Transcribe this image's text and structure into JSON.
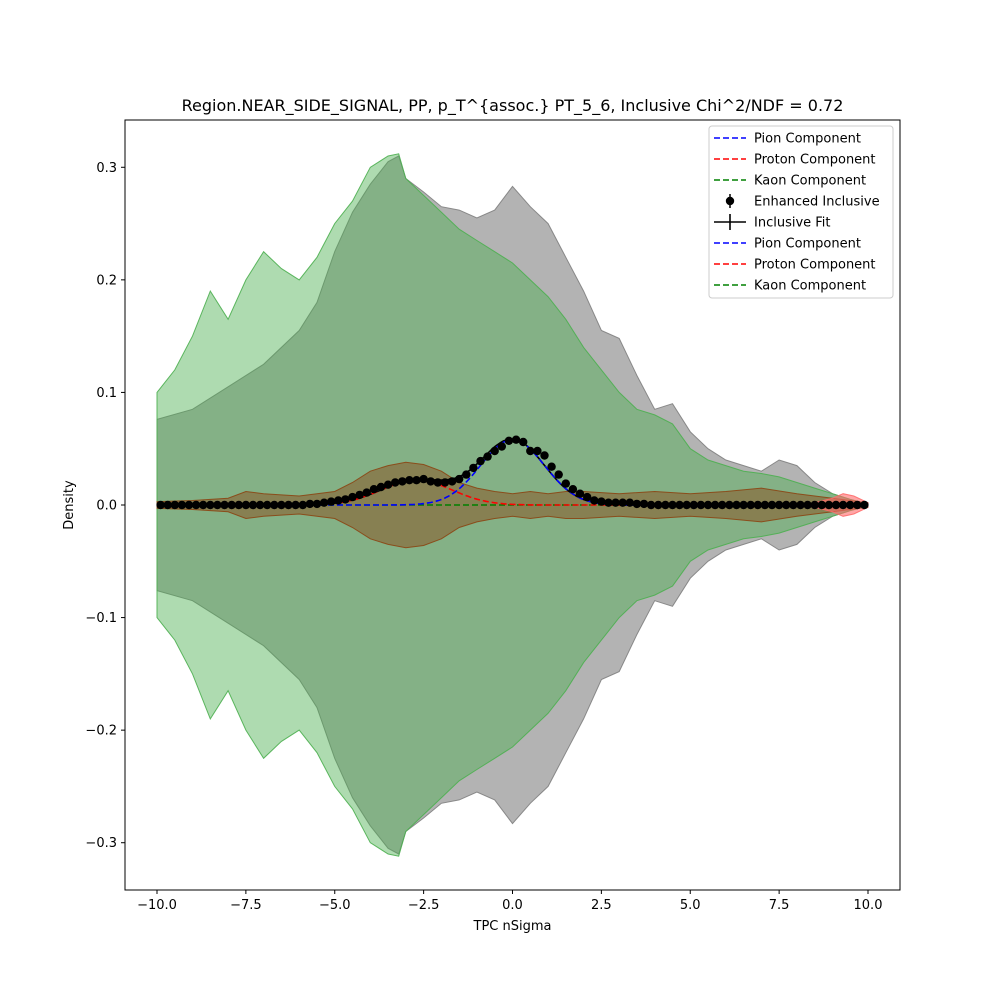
{
  "chart_data": {
    "type": "line",
    "title": "Region.NEAR_SIDE_SIGNAL, PP, p_T^{assoc.} PT_5_6, Inclusive Chi^2/NDF = 0.72",
    "xlabel": "TPC nSigma",
    "ylabel": "Density",
    "xlim": [
      -10.9,
      10.9
    ],
    "ylim": [
      -0.342,
      0.342
    ],
    "xticks": [
      -10,
      -7.5,
      -5,
      -2.5,
      0,
      2.5,
      5,
      7.5,
      10
    ],
    "xtick_labels": [
      "−10.0",
      "−7.5",
      "−5.0",
      "−2.5",
      "0.0",
      "2.5",
      "5.0",
      "7.5",
      "10.0"
    ],
    "yticks": [
      -0.3,
      -0.2,
      -0.1,
      0.0,
      0.1,
      0.2,
      0.3
    ],
    "ytick_labels": [
      "−0.3",
      "−0.2",
      "−0.1",
      "0.0",
      "0.1",
      "0.2",
      "0.3"
    ],
    "grid": false,
    "legend_position": "top-right",
    "legend": [
      {
        "label": "Pion Component",
        "style": "dashed",
        "color": "#0000ff"
      },
      {
        "label": "Proton Component",
        "style": "dashed",
        "color": "#ff0000"
      },
      {
        "label": "Kaon Component",
        "style": "dashed",
        "color": "#008000"
      },
      {
        "label": "Enhanced Inclusive",
        "style": "errorbar-marker",
        "color": "#000000"
      },
      {
        "label": "Inclusive Fit",
        "style": "errorbar-line",
        "color": "#000000"
      },
      {
        "label": "Pion Component",
        "style": "dashed",
        "color": "#0000ff"
      },
      {
        "label": "Proton Component",
        "style": "dashed",
        "color": "#ff0000"
      },
      {
        "label": "Kaon Component",
        "style": "dashed",
        "color": "#008000"
      }
    ],
    "bands": [
      {
        "color": "#808080",
        "opacity": 0.6,
        "x": [
          -10,
          -9,
          -8,
          -7,
          -6,
          -5.5,
          -5,
          -4.5,
          -4,
          -3.5,
          -3.2,
          -3,
          -2.5,
          -2,
          -1.5,
          -1,
          -0.5,
          0,
          0.5,
          1,
          1.5,
          2,
          2.5,
          3,
          3.5,
          4,
          4.5,
          5,
          5.5,
          6,
          6.5,
          7,
          7.5,
          8,
          8.5,
          9,
          9.5,
          10
        ],
        "upper": [
          0.076,
          0.085,
          0.105,
          0.125,
          0.155,
          0.18,
          0.225,
          0.26,
          0.285,
          0.305,
          0.31,
          0.29,
          0.278,
          0.265,
          0.262,
          0.255,
          0.262,
          0.283,
          0.265,
          0.25,
          0.22,
          0.19,
          0.155,
          0.148,
          0.115,
          0.085,
          0.09,
          0.065,
          0.05,
          0.04,
          0.035,
          0.03,
          0.04,
          0.035,
          0.02,
          0.01,
          0.005,
          0.001
        ]
      },
      {
        "color": "#4caf50",
        "opacity": 0.45,
        "x": [
          -10,
          -9.5,
          -9,
          -8.5,
          -8,
          -7.5,
          -7,
          -6.5,
          -6,
          -5.5,
          -5,
          -4.5,
          -4,
          -3.5,
          -3.2,
          -3,
          -2.5,
          -2,
          -1.5,
          -1,
          -0.5,
          0,
          0.5,
          1,
          1.5,
          2,
          2.5,
          3,
          3.5,
          4,
          4.5,
          5,
          5.5,
          6,
          6.5,
          7,
          7.5,
          8,
          8.5,
          9,
          9.5,
          10
        ],
        "upper": [
          0.1,
          0.12,
          0.15,
          0.19,
          0.165,
          0.2,
          0.225,
          0.21,
          0.2,
          0.22,
          0.25,
          0.27,
          0.3,
          0.31,
          0.312,
          0.29,
          0.275,
          0.26,
          0.245,
          0.235,
          0.225,
          0.215,
          0.2,
          0.185,
          0.165,
          0.14,
          0.12,
          0.1,
          0.085,
          0.08,
          0.072,
          0.05,
          0.04,
          0.035,
          0.03,
          0.028,
          0.025,
          0.02,
          0.015,
          0.01,
          0.005,
          0.001
        ]
      },
      {
        "color": "#8b4513",
        "opacity": 0.45,
        "x": [
          -10,
          -9,
          -8,
          -7.5,
          -7,
          -6,
          -5,
          -4.5,
          -4,
          -3.5,
          -3,
          -2.5,
          -2,
          -1.5,
          -1,
          -0.5,
          0,
          0.5,
          1,
          1.5,
          2,
          3,
          4,
          5,
          6,
          7,
          8,
          8.5,
          9,
          9.5,
          10
        ],
        "upper": [
          0.003,
          0.004,
          0.006,
          0.012,
          0.01,
          0.008,
          0.012,
          0.02,
          0.03,
          0.035,
          0.038,
          0.036,
          0.03,
          0.02,
          0.015,
          0.012,
          0.01,
          0.012,
          0.01,
          0.012,
          0.012,
          0.01,
          0.012,
          0.01,
          0.012,
          0.015,
          0.01,
          0.008,
          0.006,
          0.004,
          0.002
        ]
      },
      {
        "color": "#ff6b6b",
        "opacity": 0.6,
        "x": [
          8.5,
          9,
          9.3,
          9.6,
          10
        ],
        "upper": [
          0.002,
          0.006,
          0.01,
          0.008,
          0.002
        ]
      }
    ],
    "series": [
      {
        "name": "Pion Component",
        "style": "dashed",
        "color": "#0000ff",
        "function": "gaussian",
        "amplitude": 0.058,
        "mean": 0.0,
        "sigma": 0.9
      },
      {
        "name": "Proton Component",
        "style": "dashed",
        "color": "#ff0000",
        "function": "gaussian",
        "amplitude": 0.022,
        "mean": -2.7,
        "sigma": 1.0
      },
      {
        "name": "Kaon Component",
        "style": "dashed",
        "color": "#008000",
        "function": "gaussian",
        "amplitude": 0.0,
        "mean": -1.3,
        "sigma": 1.0
      },
      {
        "name": "Inclusive Fit",
        "style": "solid",
        "color": "#000000",
        "function": "sum"
      },
      {
        "name": "Enhanced Inclusive",
        "style": "markers",
        "color": "#000000",
        "x": [
          -9.9,
          -9.7,
          -9.5,
          -9.3,
          -9.1,
          -8.9,
          -8.7,
          -8.5,
          -8.3,
          -8.1,
          -7.9,
          -7.7,
          -7.5,
          -7.3,
          -7.1,
          -6.9,
          -6.7,
          -6.5,
          -6.3,
          -6.1,
          -5.9,
          -5.7,
          -5.5,
          -5.3,
          -5.1,
          -4.9,
          -4.7,
          -4.5,
          -4.3,
          -4.1,
          -3.9,
          -3.7,
          -3.5,
          -3.3,
          -3.1,
          -2.9,
          -2.7,
          -2.5,
          -2.3,
          -2.1,
          -1.9,
          -1.7,
          -1.5,
          -1.3,
          -1.1,
          -0.9,
          -0.7,
          -0.5,
          -0.3,
          -0.1,
          0.1,
          0.3,
          0.5,
          0.7,
          0.9,
          1.1,
          1.3,
          1.5,
          1.7,
          1.9,
          2.1,
          2.3,
          2.5,
          2.7,
          2.9,
          3.1,
          3.3,
          3.5,
          3.7,
          3.9,
          4.1,
          4.3,
          4.5,
          4.7,
          4.9,
          5.1,
          5.3,
          5.5,
          5.7,
          5.9,
          6.1,
          6.3,
          6.5,
          6.7,
          6.9,
          7.1,
          7.3,
          7.5,
          7.7,
          7.9,
          8.1,
          8.3,
          8.5,
          8.7,
          8.9,
          9.1,
          9.3,
          9.5,
          9.7,
          9.9
        ],
        "y": [
          0.0,
          0.0,
          0.0,
          0.0,
          0.0,
          0.0,
          0.0,
          0.0,
          0.0,
          0.0,
          0.0,
          0.0,
          0.0,
          0.0,
          0.0,
          0.0,
          0.0,
          0.0,
          0.0,
          0.0,
          0.0,
          0.001,
          0.001,
          0.002,
          0.003,
          0.004,
          0.005,
          0.007,
          0.009,
          0.011,
          0.014,
          0.016,
          0.018,
          0.02,
          0.021,
          0.022,
          0.022,
          0.023,
          0.021,
          0.02,
          0.02,
          0.021,
          0.023,
          0.027,
          0.033,
          0.039,
          0.043,
          0.048,
          0.052,
          0.057,
          0.058,
          0.056,
          0.048,
          0.048,
          0.044,
          0.034,
          0.027,
          0.019,
          0.014,
          0.01,
          0.007,
          0.004,
          0.003,
          0.002,
          0.002,
          0.002,
          0.002,
          0.001,
          0.001,
          0.0,
          0.0,
          0.0,
          0.0,
          0.0,
          0.0,
          0.0,
          0.0,
          0.0,
          0.0,
          0.0,
          0.0,
          0.0,
          0.0,
          0.0,
          0.0,
          0.0,
          0.0,
          0.0,
          0.0,
          0.0,
          0.0,
          0.0,
          0.0,
          0.0,
          0.0,
          0.0,
          0.0,
          0.0,
          0.0,
          0.0
        ]
      }
    ]
  }
}
